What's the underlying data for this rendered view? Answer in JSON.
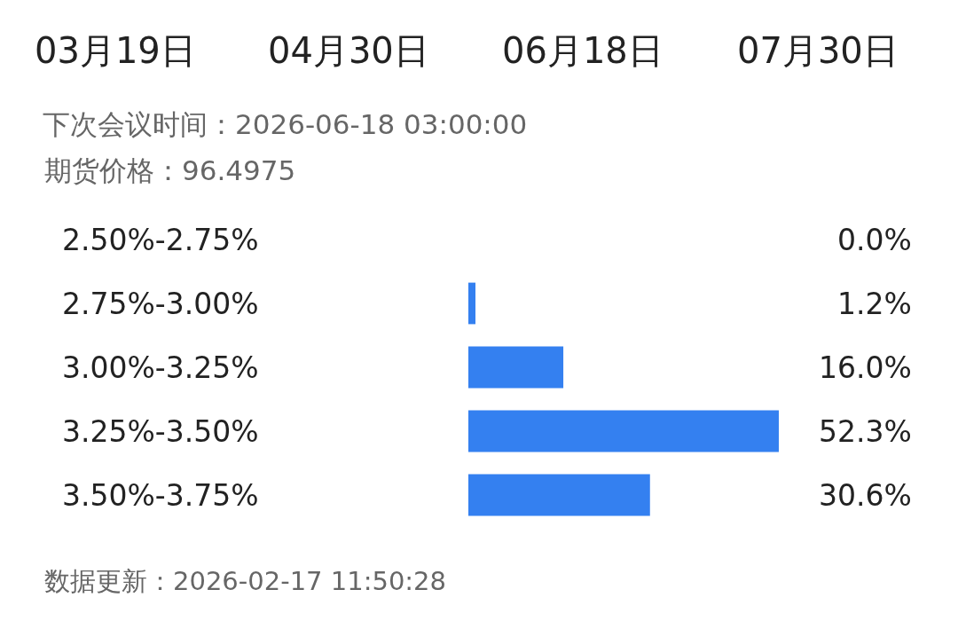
{
  "chart_data": {
    "type": "bar",
    "orientation": "horizontal",
    "title": "下次会议时间：2026-06-18 03:00:00",
    "subtitle": "期货价格：96.4975",
    "categories": [
      "2.50%-2.75%",
      "2.75%-3.00%",
      "3.00%-3.25%",
      "3.25%-3.50%",
      "3.50%-3.75%"
    ],
    "values": [
      0.0,
      1.2,
      16.0,
      52.3,
      30.6
    ],
    "value_labels": [
      "0.0%",
      "1.2%",
      "16.0%",
      "52.3%",
      "30.6%"
    ],
    "color": "#3480f0",
    "tick_labels": "y",
    "grid": false,
    "legend": false,
    "annotations": [
      "03月19日",
      "04月30日",
      "06月18日",
      "07月30日",
      "数据更新：2026-02-17 11:50:28"
    ]
  }
}
